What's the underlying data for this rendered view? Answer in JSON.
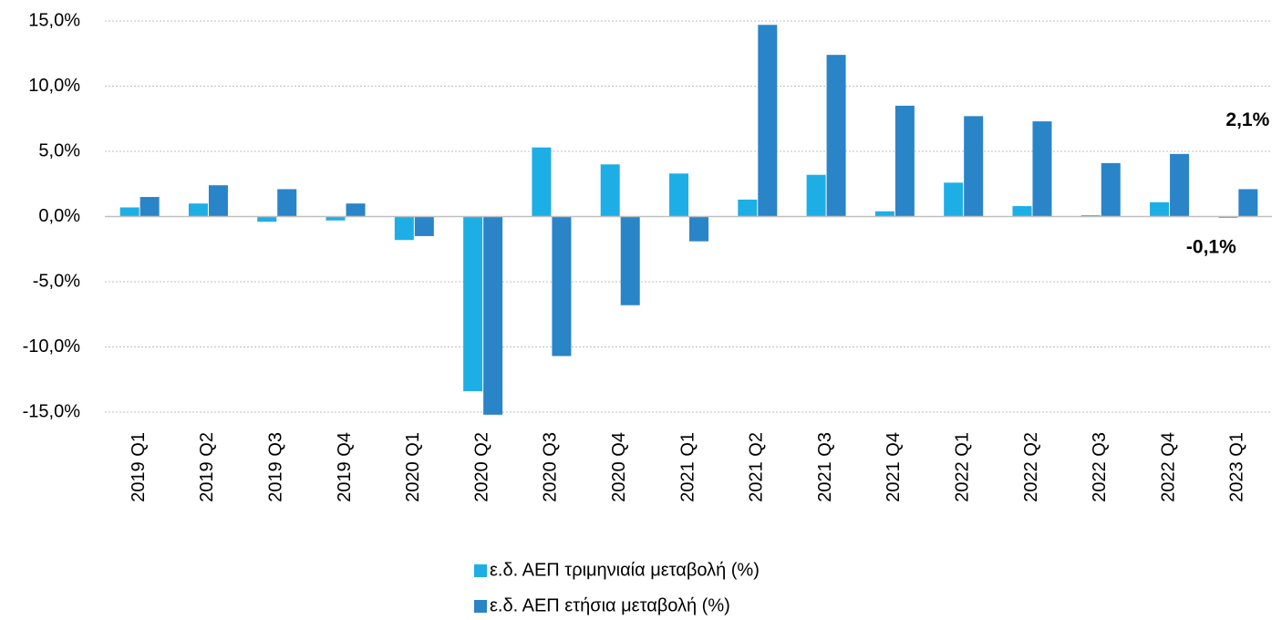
{
  "chart_data": {
    "type": "bar",
    "categories": [
      "2019 Q1",
      "2019 Q2",
      "2019 Q3",
      "2019 Q4",
      "2020 Q1",
      "2020 Q2",
      "2020 Q3",
      "2020 Q4",
      "2021 Q1",
      "2021 Q2",
      "2021 Q3",
      "2021 Q4",
      "2022 Q1",
      "2022 Q2",
      "2022 Q3",
      "2022 Q4",
      "2023 Q1"
    ],
    "series": [
      {
        "name": "ε.δ. ΑΕΠ τριμηνιαία μεταβολή (%)",
        "color": "#1eaee6",
        "values": [
          0.7,
          1.0,
          -0.4,
          -0.3,
          -1.8,
          -13.4,
          5.3,
          4.0,
          3.3,
          1.3,
          3.2,
          0.4,
          2.6,
          0.8,
          0.1,
          1.1,
          -0.1
        ],
        "value_labels": [
          null,
          null,
          null,
          null,
          null,
          null,
          null,
          null,
          null,
          null,
          null,
          null,
          null,
          null,
          null,
          null,
          "-0,1%"
        ]
      },
      {
        "name": "ε.δ. ΑΕΠ ετήσια μεταβολή (%)",
        "color": "#2a84c8",
        "values": [
          1.5,
          2.4,
          2.1,
          1.0,
          -1.5,
          -15.2,
          -10.7,
          -6.8,
          -1.9,
          14.7,
          12.4,
          8.5,
          7.7,
          7.3,
          4.1,
          4.8,
          2.1
        ],
        "value_labels": [
          null,
          null,
          null,
          null,
          null,
          null,
          null,
          null,
          null,
          null,
          null,
          null,
          null,
          null,
          null,
          null,
          "2,1%"
        ]
      }
    ],
    "ylim": [
      -15,
      15
    ],
    "yticks": [
      {
        "value": -15,
        "label": "-15,0%"
      },
      {
        "value": -10,
        "label": "-10,0%"
      },
      {
        "value": -5,
        "label": "-5,0%"
      },
      {
        "value": 0,
        "label": "0,0%"
      },
      {
        "value": 5,
        "label": "5,0%"
      },
      {
        "value": 10,
        "label": "10,0%"
      },
      {
        "value": 15,
        "label": "15,0%"
      }
    ],
    "grid": true,
    "legend": "bottom"
  }
}
